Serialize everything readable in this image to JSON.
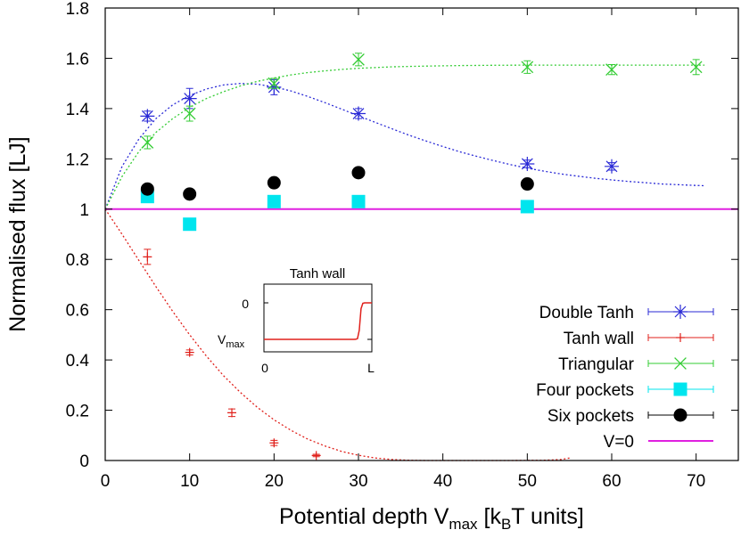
{
  "chart_data": {
    "type": "scatter",
    "xlabel": "Potential depth  V",
    "xlabel_sub": "max",
    "xlabel_after": " [k",
    "xlabel_sub2": "B",
    "xlabel_end": "T units]",
    "ylabel": "Normalised flux  [LJ]",
    "xlim": [
      0,
      75
    ],
    "ylim": [
      0,
      1.8
    ],
    "x_ticks": [
      0,
      10,
      20,
      30,
      40,
      50,
      60,
      70
    ],
    "x_tick_labels": [
      "0",
      "10",
      "20",
      "30",
      "40",
      "50",
      "60",
      "70"
    ],
    "y_ticks": [
      0,
      0.2,
      0.4,
      0.6,
      0.8,
      1,
      1.2,
      1.4,
      1.6,
      1.8
    ],
    "y_tick_labels": [
      "0",
      "0.2",
      "0.4",
      "0.6",
      "0.8",
      "1",
      "1.2",
      "1.4",
      "1.6",
      "1.8"
    ],
    "grid": false,
    "legend_position": "bottom-right",
    "series": [
      {
        "name": "Double Tanh",
        "color": "#2a2ad6",
        "marker": "asterisk",
        "points": [
          [
            5,
            1.37,
            0.02
          ],
          [
            10,
            1.44,
            0.04
          ],
          [
            20,
            1.485,
            0.03
          ],
          [
            30,
            1.38,
            0.02
          ],
          [
            50,
            1.18,
            0.015
          ],
          [
            60,
            1.17,
            0.015
          ]
        ],
        "fit": [
          [
            0,
            1.0
          ],
          [
            2,
            1.17
          ],
          [
            4,
            1.28
          ],
          [
            6,
            1.36
          ],
          [
            8,
            1.415
          ],
          [
            10,
            1.452
          ],
          [
            12,
            1.478
          ],
          [
            14,
            1.494
          ],
          [
            16,
            1.5
          ],
          [
            18,
            1.497
          ],
          [
            20,
            1.486
          ],
          [
            22,
            1.47
          ],
          [
            24,
            1.448
          ],
          [
            26,
            1.424
          ],
          [
            28,
            1.398
          ],
          [
            30,
            1.371
          ],
          [
            32,
            1.345
          ],
          [
            34,
            1.319
          ],
          [
            36,
            1.294
          ],
          [
            38,
            1.271
          ],
          [
            40,
            1.249
          ],
          [
            42,
            1.228
          ],
          [
            44,
            1.21
          ],
          [
            46,
            1.193
          ],
          [
            48,
            1.177
          ],
          [
            50,
            1.163
          ],
          [
            52,
            1.151
          ],
          [
            54,
            1.14
          ],
          [
            56,
            1.131
          ],
          [
            58,
            1.123
          ],
          [
            60,
            1.116
          ],
          [
            62,
            1.11
          ],
          [
            64,
            1.105
          ],
          [
            66,
            1.1
          ],
          [
            68,
            1.097
          ],
          [
            70,
            1.094
          ],
          [
            71,
            1.093
          ]
        ]
      },
      {
        "name": "Tanh wall",
        "color": "#e0201b",
        "marker": "plus",
        "points": [
          [
            5,
            0.81,
            0.03
          ],
          [
            10,
            0.43,
            0.01
          ],
          [
            15,
            0.19,
            0.015
          ],
          [
            20,
            0.07,
            0.01
          ],
          [
            25,
            0.02,
            0.005
          ]
        ],
        "fit": [
          [
            0,
            1.0
          ],
          [
            2,
            0.9
          ],
          [
            4,
            0.795
          ],
          [
            6,
            0.692
          ],
          [
            8,
            0.593
          ],
          [
            10,
            0.5
          ],
          [
            12,
            0.415
          ],
          [
            14,
            0.338
          ],
          [
            16,
            0.271
          ],
          [
            18,
            0.212
          ],
          [
            20,
            0.162
          ],
          [
            22,
            0.12
          ],
          [
            24,
            0.085
          ],
          [
            26,
            0.058
          ],
          [
            28,
            0.036
          ],
          [
            30,
            0.021
          ],
          [
            32,
            0.01
          ],
          [
            34,
            0.004
          ],
          [
            36,
            0.001
          ],
          [
            38,
            0.0
          ],
          [
            40,
            0.0
          ],
          [
            44,
            0.0
          ],
          [
            48,
            0.0
          ],
          [
            52,
            0.001
          ],
          [
            54,
            0.004
          ],
          [
            55,
            0.01
          ]
        ]
      },
      {
        "name": "Triangular",
        "color": "#33cc33",
        "marker": "cross",
        "points": [
          [
            5,
            1.265,
            0.025
          ],
          [
            10,
            1.38,
            0.03
          ],
          [
            20,
            1.5,
            0.02
          ],
          [
            30,
            1.595,
            0.025
          ],
          [
            50,
            1.565,
            0.025
          ],
          [
            60,
            1.555,
            0.02
          ],
          [
            70,
            1.565,
            0.03
          ]
        ],
        "fit": [
          [
            0,
            1.0
          ],
          [
            2,
            1.13
          ],
          [
            4,
            1.23
          ],
          [
            6,
            1.305
          ],
          [
            8,
            1.36
          ],
          [
            10,
            1.405
          ],
          [
            12,
            1.44
          ],
          [
            14,
            1.467
          ],
          [
            16,
            1.49
          ],
          [
            18,
            1.508
          ],
          [
            20,
            1.522
          ],
          [
            22,
            1.534
          ],
          [
            24,
            1.543
          ],
          [
            26,
            1.55
          ],
          [
            28,
            1.556
          ],
          [
            30,
            1.56
          ],
          [
            34,
            1.566
          ],
          [
            38,
            1.569
          ],
          [
            42,
            1.571
          ],
          [
            46,
            1.572
          ],
          [
            50,
            1.573
          ],
          [
            55,
            1.573
          ],
          [
            60,
            1.573
          ],
          [
            65,
            1.573
          ],
          [
            71,
            1.573
          ]
        ]
      },
      {
        "name": "Four pockets",
        "color": "#00e5ee",
        "marker": "square",
        "points": [
          [
            5,
            1.05
          ],
          [
            10,
            0.94
          ],
          [
            20,
            1.03
          ],
          [
            30,
            1.03
          ],
          [
            50,
            1.01
          ]
        ]
      },
      {
        "name": "Six pockets",
        "color": "#000000",
        "marker": "circle",
        "points": [
          [
            5,
            1.08
          ],
          [
            10,
            1.06
          ],
          [
            20,
            1.105
          ],
          [
            30,
            1.145
          ],
          [
            50,
            1.1
          ]
        ]
      },
      {
        "name": "V=0",
        "color": "#e020e0",
        "marker": "line",
        "value": 1.0
      }
    ],
    "inset": {
      "title": "Tanh wall",
      "x_tick_labels": [
        "0",
        "L"
      ],
      "y_tick_top": "0",
      "y_tick_bottom": "V",
      "y_tick_bottom_sub": "max",
      "curve_color": "#e0201b"
    }
  }
}
